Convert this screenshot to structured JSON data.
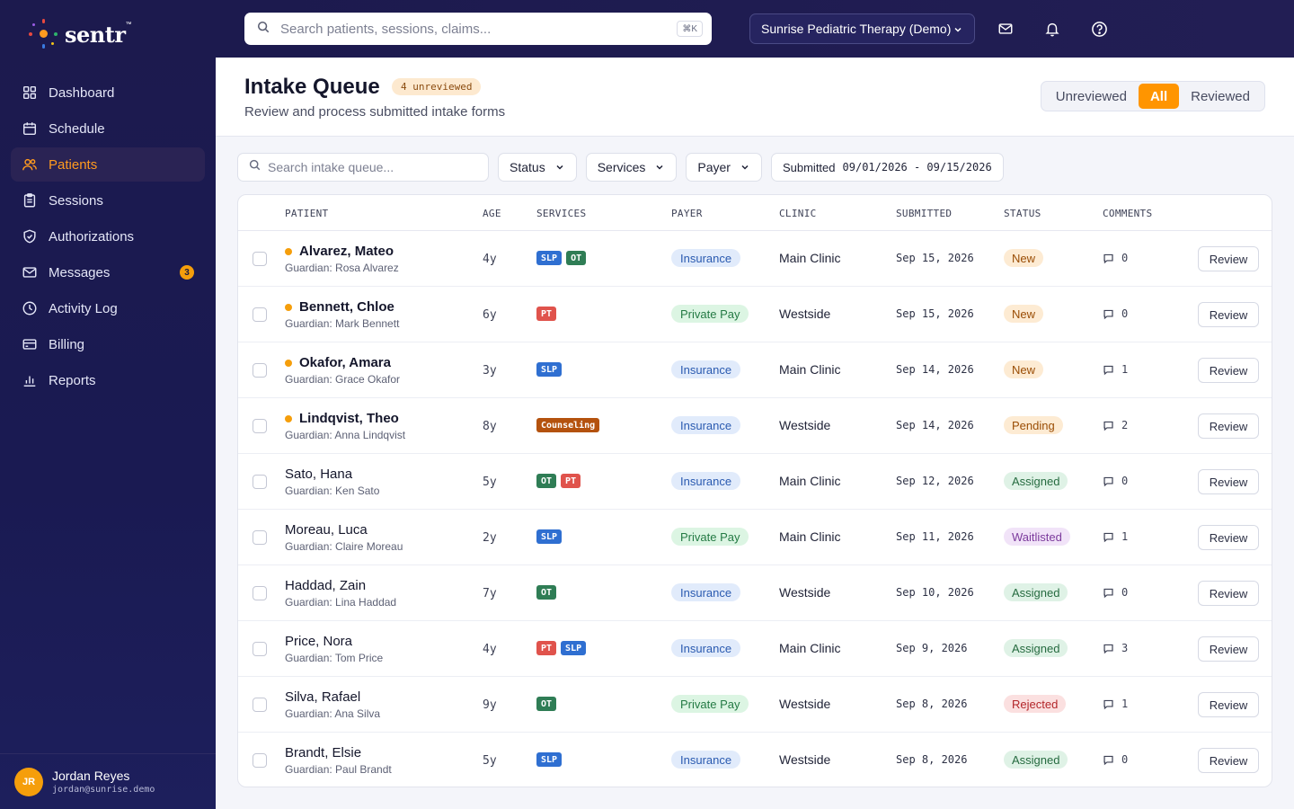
{
  "brand": {
    "name": "sentr",
    "mark": "™"
  },
  "nav": [
    {
      "label": "Dashboard",
      "icon": "grid-icon",
      "active": false
    },
    {
      "label": "Schedule",
      "icon": "calendar-icon",
      "active": false
    },
    {
      "label": "Patients",
      "icon": "users-icon",
      "active": true
    },
    {
      "label": "Sessions",
      "icon": "clipboard-icon",
      "active": false
    },
    {
      "label": "Authorizations",
      "icon": "shield-icon",
      "active": false
    },
    {
      "label": "Messages",
      "icon": "mail-icon",
      "active": false,
      "badge": "3"
    },
    {
      "label": "Activity Log",
      "icon": "clock-icon",
      "active": false
    },
    {
      "label": "Billing",
      "icon": "credit-card-icon",
      "active": false
    },
    {
      "label": "Reports",
      "icon": "bar-chart-icon",
      "active": false
    }
  ],
  "user": {
    "initials": "JR",
    "name": "Jordan Reyes",
    "email": "jordan@sunrise.demo"
  },
  "topbar": {
    "search_placeholder": "Search patients, sessions, claims...",
    "shortcut": "⌘K",
    "org": "Sunrise Pediatric Therapy (Demo)"
  },
  "page": {
    "title": "Intake Queue",
    "badge": "4 unreviewed",
    "subtitle": "Review and process submitted intake forms",
    "segments": [
      {
        "label": "Unreviewed",
        "active": false
      },
      {
        "label": "All",
        "active": true
      },
      {
        "label": "Reviewed",
        "active": false
      }
    ]
  },
  "filters": {
    "search_placeholder": "Search intake queue...",
    "status": "Status",
    "services": "Services",
    "payer": "Payer",
    "date_label": "Submitted",
    "date_range": "09/01/2026 - 09/15/2026"
  },
  "table": {
    "headers": {
      "patient": "PATIENT",
      "age": "AGE",
      "services": "SERVICES",
      "payer": "PAYER",
      "clinic": "CLINIC",
      "submitted": "SUBMITTED",
      "status": "STATUS",
      "comments": "COMMENTS"
    },
    "review_label": "Review",
    "rows": [
      {
        "name": "Alvarez, Mateo",
        "guardian": "Guardian: Rosa Alvarez",
        "unreviewed": true,
        "age": "4y",
        "services": [
          "SLP",
          "OT"
        ],
        "payer": "Insurance",
        "clinic": "Main Clinic",
        "submitted": "Sep 15, 2026",
        "status": "New",
        "comments": "0"
      },
      {
        "name": "Bennett, Chloe",
        "guardian": "Guardian: Mark Bennett",
        "unreviewed": true,
        "age": "6y",
        "services": [
          "PT"
        ],
        "payer": "Private Pay",
        "clinic": "Westside",
        "submitted": "Sep 15, 2026",
        "status": "New",
        "comments": "0"
      },
      {
        "name": "Okafor, Amara",
        "guardian": "Guardian: Grace Okafor",
        "unreviewed": true,
        "age": "3y",
        "services": [
          "SLP"
        ],
        "payer": "Insurance",
        "clinic": "Main Clinic",
        "submitted": "Sep 14, 2026",
        "status": "New",
        "comments": "1"
      },
      {
        "name": "Lindqvist, Theo",
        "guardian": "Guardian: Anna Lindqvist",
        "unreviewed": true,
        "age": "8y",
        "services": [
          "Counseling"
        ],
        "payer": "Insurance",
        "clinic": "Westside",
        "submitted": "Sep 14, 2026",
        "status": "Pending",
        "comments": "2"
      },
      {
        "name": "Sato, Hana",
        "guardian": "Guardian: Ken Sato",
        "unreviewed": false,
        "age": "5y",
        "services": [
          "OT",
          "PT"
        ],
        "payer": "Insurance",
        "clinic": "Main Clinic",
        "submitted": "Sep 12, 2026",
        "status": "Assigned",
        "comments": "0"
      },
      {
        "name": "Moreau, Luca",
        "guardian": "Guardian: Claire Moreau",
        "unreviewed": false,
        "age": "2y",
        "services": [
          "SLP"
        ],
        "payer": "Private Pay",
        "clinic": "Main Clinic",
        "submitted": "Sep 11, 2026",
        "status": "Waitlisted",
        "comments": "1"
      },
      {
        "name": "Haddad, Zain",
        "guardian": "Guardian: Lina Haddad",
        "unreviewed": false,
        "age": "7y",
        "services": [
          "OT"
        ],
        "payer": "Insurance",
        "clinic": "Westside",
        "submitted": "Sep 10, 2026",
        "status": "Assigned",
        "comments": "0"
      },
      {
        "name": "Price, Nora",
        "guardian": "Guardian: Tom Price",
        "unreviewed": false,
        "age": "4y",
        "services": [
          "PT",
          "SLP"
        ],
        "payer": "Insurance",
        "clinic": "Main Clinic",
        "submitted": "Sep 9, 2026",
        "status": "Assigned",
        "comments": "3"
      },
      {
        "name": "Silva, Rafael",
        "guardian": "Guardian: Ana Silva",
        "unreviewed": false,
        "age": "9y",
        "services": [
          "OT"
        ],
        "payer": "Private Pay",
        "clinic": "Westside",
        "submitted": "Sep 8, 2026",
        "status": "Rejected",
        "comments": "1"
      },
      {
        "name": "Brandt, Elsie",
        "guardian": "Guardian: Paul Brandt",
        "unreviewed": false,
        "age": "5y",
        "services": [
          "SLP"
        ],
        "payer": "Insurance",
        "clinic": "Westside",
        "submitted": "Sep 8, 2026",
        "status": "Assigned",
        "comments": "0"
      }
    ]
  },
  "colors": {
    "accent": "#ff9500",
    "services": {
      "SLP": "#2f6fd1",
      "OT": "#2f7d55",
      "PT": "#e0534c",
      "Counseling": "#b4520e"
    },
    "payer": {
      "Insurance": {
        "bg": "#e1ebfb",
        "fg": "#2a5ab0"
      },
      "Private Pay": {
        "bg": "#dcf5e3",
        "fg": "#247a44"
      }
    },
    "status": {
      "New": {
        "bg": "#fdebd3",
        "fg": "#9a4d05"
      },
      "Pending": {
        "bg": "#fdebd3",
        "fg": "#9a4d05"
      },
      "Assigned": {
        "bg": "#dff2e6",
        "fg": "#266b40"
      },
      "Waitlisted": {
        "bg": "#f1e3f8",
        "fg": "#7b3a9c"
      },
      "Rejected": {
        "bg": "#fbe0e0",
        "fg": "#b3262a"
      }
    }
  }
}
